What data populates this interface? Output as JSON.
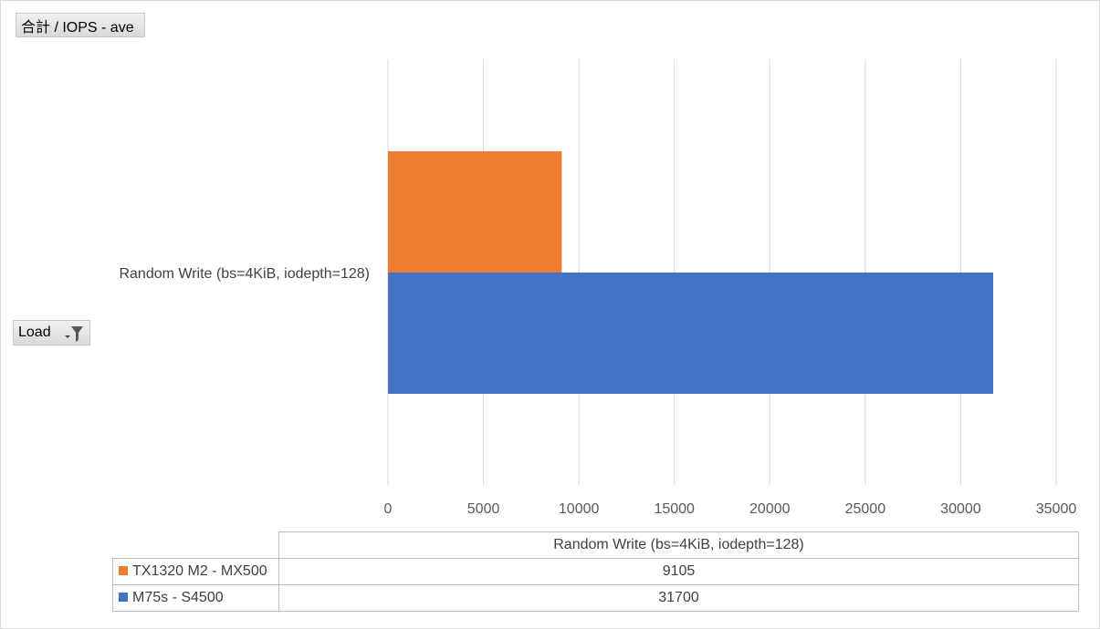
{
  "pivot": {
    "value_field": "合計 / IOPS - ave",
    "row_field": "Load",
    "filter_icon": "filter-dropdown-icon"
  },
  "chart_data": {
    "type": "bar",
    "orientation": "horizontal",
    "categories": [
      "Random Write (bs=4KiB, iodepth=128)"
    ],
    "series": [
      {
        "name": "TX1320 M2 - MX500",
        "values": [
          9105
        ],
        "color": "#ED7D31"
      },
      {
        "name": "M75s - S4500",
        "values": [
          31700
        ],
        "color": "#4472C4"
      }
    ],
    "xlim": [
      0,
      35000
    ],
    "xticks": [
      0,
      5000,
      10000,
      15000,
      20000,
      25000,
      30000,
      35000
    ],
    "grid": true,
    "legend": "data-table-below",
    "data_table": {
      "header": "Random Write (bs=4KiB, iodepth=128)",
      "rows": [
        {
          "series": "TX1320 M2 - MX500",
          "value": "9105"
        },
        {
          "series": "M75s - S4500",
          "value": "31700"
        }
      ]
    }
  }
}
